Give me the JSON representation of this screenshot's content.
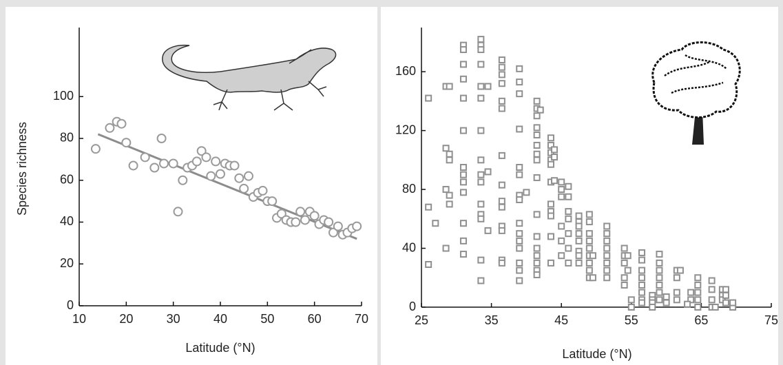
{
  "chart_data": [
    {
      "type": "scatter",
      "marker": "circle",
      "color": "#9a9a9a",
      "line_color": "#8c8c8c",
      "x_label": "Latitude (°N)",
      "y_label": "Species richness",
      "xlim": [
        10,
        70
      ],
      "xticks": [
        10,
        20,
        30,
        40,
        50,
        60,
        70
      ],
      "ylim": [
        0,
        133
      ],
      "yticks": [
        0,
        20,
        40,
        60,
        80,
        100
      ],
      "x": [
        13.5,
        16.5,
        18,
        19,
        20,
        21.5,
        24,
        26,
        27.5,
        28,
        30,
        31,
        32,
        33,
        34,
        35,
        36,
        37,
        38,
        39,
        40,
        41,
        42,
        43,
        44,
        45,
        46,
        47,
        48,
        49,
        50,
        51,
        52,
        53,
        54,
        55,
        56,
        57,
        58,
        59,
        60,
        61,
        62,
        63,
        64,
        65,
        66,
        67,
        68,
        69
      ],
      "values": [
        75,
        85,
        88,
        87,
        78,
        67,
        71,
        66,
        80,
        68,
        68,
        45,
        60,
        66,
        67,
        69,
        74,
        71,
        62,
        69,
        63,
        68,
        67,
        67,
        61,
        56,
        62,
        52,
        54,
        55,
        50,
        50,
        42,
        44,
        41,
        40,
        40,
        45,
        41,
        45,
        43,
        39,
        41,
        40,
        35,
        38,
        34,
        35,
        37,
        38
      ],
      "trendline": {
        "x": [
          14,
          69
        ],
        "y": [
          82,
          32
        ]
      }
    },
    {
      "type": "scatter",
      "marker": "square",
      "color": "#8f8f8f",
      "x_label": "Latitude (°N)",
      "xlim": [
        25,
        75
      ],
      "xticks": [
        25,
        35,
        45,
        55,
        65,
        75
      ],
      "ylim": [
        0,
        190
      ],
      "yticks": [
        0,
        40,
        80,
        120,
        160
      ],
      "x": [
        26,
        26,
        26,
        27,
        28.5,
        28.5,
        28.5,
        28.5,
        29,
        29,
        29,
        29,
        29,
        31,
        31,
        31,
        31,
        31,
        31,
        31,
        31,
        31,
        31,
        31,
        31,
        31,
        33.5,
        33.5,
        33.5,
        33.5,
        33.5,
        33.5,
        33.5,
        33.5,
        33.5,
        33.5,
        33.5,
        33.5,
        33.5,
        33.5,
        33.5,
        34.5,
        34.5,
        34.5,
        36.5,
        36.5,
        36.5,
        36.5,
        36.5,
        36.5,
        36.5,
        36.5,
        36.5,
        36.5,
        36.5,
        36.5,
        36.5,
        36.5,
        39,
        39,
        39,
        39,
        39,
        39,
        39,
        39,
        39,
        39,
        39,
        39,
        39,
        39,
        39,
        40,
        41.5,
        41.5,
        41.5,
        41.5,
        41.5,
        41.5,
        41.5,
        41.5,
        41.5,
        41.5,
        41.5,
        41.5,
        41.5,
        41.5,
        41.5,
        41.5,
        42,
        43.5,
        43.5,
        43.5,
        43.5,
        43.5,
        43.5,
        43.5,
        43.5,
        43.5,
        43.5,
        43.5,
        44,
        44,
        44,
        45,
        45,
        45,
        45,
        45,
        45,
        46,
        46,
        46,
        46,
        46,
        46,
        46,
        47.5,
        47.5,
        47.5,
        47.5,
        47.5,
        47.5,
        47.5,
        47.5,
        49,
        49,
        49,
        49,
        49,
        49,
        49,
        49,
        49,
        49.5,
        49.5,
        51.5,
        51.5,
        51.5,
        51.5,
        51.5,
        51.5,
        51.5,
        51.5,
        54,
        54,
        54,
        54,
        54,
        54.5,
        54.5,
        55,
        55,
        56.5,
        56.5,
        56.5,
        56.5,
        56.5,
        56.5,
        56.5,
        56.5,
        58,
        58,
        58,
        58,
        59,
        59,
        59,
        59,
        59,
        59,
        59,
        60,
        60,
        61.5,
        61.5,
        61.5,
        61.5,
        62,
        63.5,
        63.5,
        64.5,
        64.5,
        64.5,
        64.5,
        64.5,
        66.5,
        66.5,
        66.5,
        66.5,
        68,
        68,
        68,
        68.5,
        68.5,
        68.5,
        69.5,
        69.5,
        67,
        63
      ],
      "values": [
        142,
        68,
        29,
        57,
        150,
        108,
        80,
        40,
        150,
        104,
        100,
        76,
        70,
        178,
        175,
        165,
        155,
        142,
        120,
        95,
        90,
        85,
        78,
        57,
        45,
        36,
        182,
        178,
        175,
        165,
        150,
        142,
        120,
        100,
        90,
        85,
        70,
        63,
        60,
        32,
        18,
        150,
        92,
        52,
        168,
        163,
        158,
        152,
        140,
        135,
        103,
        83,
        72,
        68,
        55,
        52,
        32,
        30,
        162,
        153,
        145,
        121,
        95,
        90,
        76,
        73,
        57,
        50,
        45,
        40,
        30,
        25,
        18,
        78,
        140,
        135,
        130,
        122,
        117,
        110,
        104,
        100,
        88,
        63,
        48,
        40,
        35,
        30,
        25,
        22,
        134,
        115,
        110,
        105,
        100,
        97,
        85,
        70,
        65,
        62,
        48,
        30,
        107,
        102,
        86,
        85,
        80,
        75,
        55,
        45,
        35,
        82,
        75,
        65,
        60,
        50,
        40,
        30,
        62,
        58,
        55,
        50,
        45,
        38,
        35,
        30,
        63,
        58,
        50,
        45,
        40,
        35,
        30,
        25,
        20,
        35,
        20,
        55,
        50,
        45,
        40,
        35,
        30,
        25,
        20,
        40,
        35,
        30,
        20,
        15,
        35,
        25,
        5,
        0,
        37,
        32,
        25,
        20,
        15,
        10,
        5,
        3,
        8,
        5,
        3,
        0,
        36,
        30,
        25,
        20,
        15,
        10,
        5,
        7,
        3,
        25,
        20,
        10,
        5,
        25,
        10,
        5,
        20,
        15,
        10,
        5,
        0,
        18,
        12,
        5,
        0,
        12,
        8,
        5,
        12,
        8,
        3,
        0,
        3,
        0,
        2
      ]
    }
  ]
}
